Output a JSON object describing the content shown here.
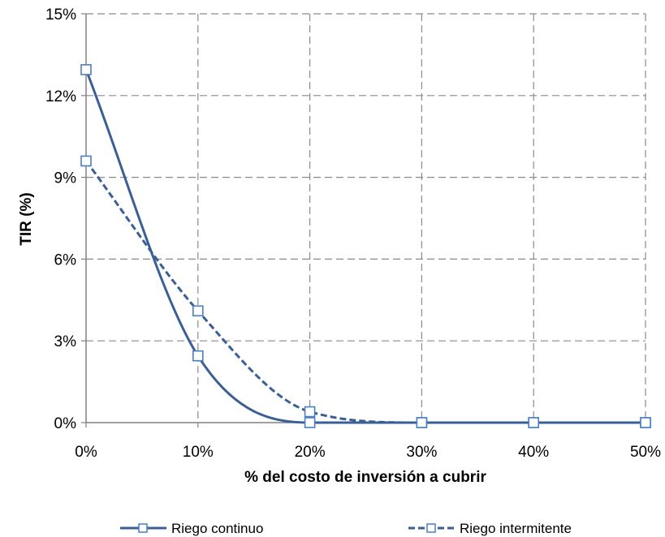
{
  "chart_data": {
    "type": "line",
    "title": "",
    "xlabel": "% del costo de inversión a cubrir",
    "ylabel": "TIR (%)",
    "x": [
      0,
      10,
      20,
      30,
      40,
      50
    ],
    "x_tick_labels": [
      "0%",
      "10%",
      "20%",
      "30%",
      "40%",
      "50%"
    ],
    "y_tick_labels": [
      "0%",
      "3%",
      "6%",
      "9%",
      "12%",
      "15%"
    ],
    "xlim": [
      0,
      50
    ],
    "ylim": [
      0,
      15
    ],
    "y_ticks": [
      0,
      3,
      6,
      9,
      12,
      15
    ],
    "grid": true,
    "legend_position": "bottom",
    "series": [
      {
        "name": "Riego continuo",
        "values": [
          12.95,
          2.45,
          0.0,
          0.0,
          0.0,
          0.0
        ],
        "line_style": "solid",
        "color": "#3a5f96"
      },
      {
        "name": "Riego intermitente",
        "values": [
          9.6,
          4.1,
          0.4,
          0.0,
          0.0,
          0.0
        ],
        "line_style": "dashed",
        "color": "#3a5f96"
      }
    ]
  },
  "colors": {
    "grid": "#8a8a8a",
    "series": "#3a5f96",
    "marker": "#4a7fc4"
  }
}
